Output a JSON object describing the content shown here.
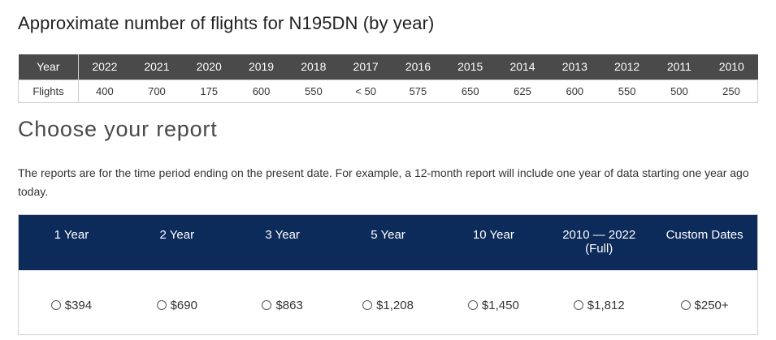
{
  "flights_section": {
    "title": "Approximate number of flights for N195DN (by year)",
    "header_label": "Year",
    "row_label": "Flights",
    "years": [
      "2022",
      "2021",
      "2020",
      "2019",
      "2018",
      "2017",
      "2016",
      "2015",
      "2014",
      "2013",
      "2012",
      "2011",
      "2010"
    ],
    "counts": [
      "400",
      "700",
      "175",
      "600",
      "550",
      "< 50",
      "575",
      "650",
      "625",
      "600",
      "550",
      "500",
      "250"
    ]
  },
  "report_section": {
    "title": "Choose your report",
    "description": "The reports are for the time period ending on the present date. For example, a 12-month report will include one year of data starting one year ago today.",
    "options": [
      {
        "label": "1 Year",
        "sublabel": "",
        "price": "$394"
      },
      {
        "label": "2 Year",
        "sublabel": "",
        "price": "$690"
      },
      {
        "label": "3 Year",
        "sublabel": "",
        "price": "$863"
      },
      {
        "label": "5 Year",
        "sublabel": "",
        "price": "$1,208"
      },
      {
        "label": "10 Year",
        "sublabel": "",
        "price": "$1,450"
      },
      {
        "label": "2010 — 2022",
        "sublabel": "(Full)",
        "price": "$1,812"
      },
      {
        "label": "Custom Dates",
        "sublabel": "",
        "price": "$250+"
      }
    ]
  },
  "colors": {
    "table_header_bg": "#4a4a4a",
    "options_header_bg": "#0c2a5a"
  }
}
